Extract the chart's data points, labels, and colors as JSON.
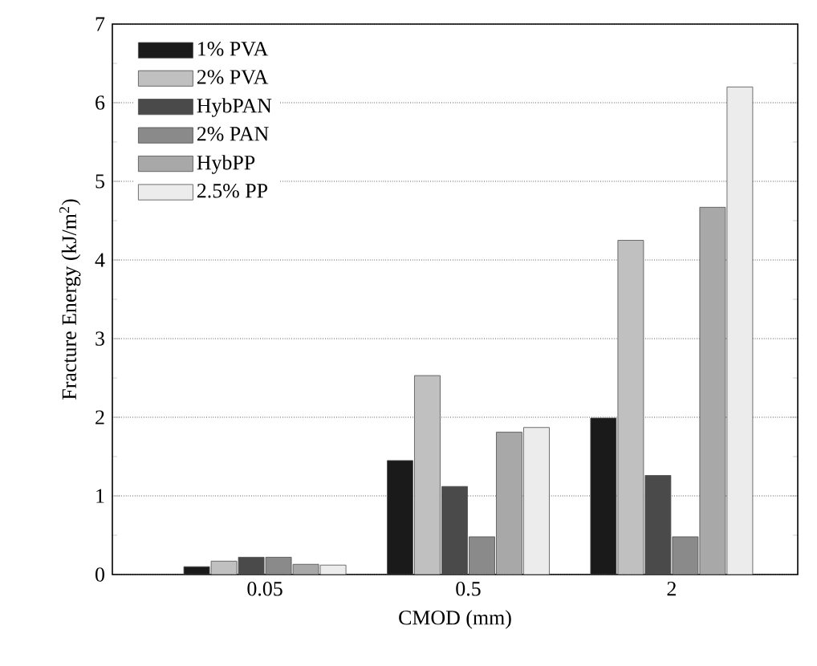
{
  "chart_data": {
    "type": "bar",
    "xlabel": "CMOD (mm)",
    "ylabel": "Fracture Energy (kJ/m$^{2}$)",
    "categories": [
      "0.05",
      "0.5",
      "2"
    ],
    "series": [
      {
        "name": "1% PVA",
        "color": "#1a1a1a",
        "values": [
          0.1,
          1.45,
          1.99
        ]
      },
      {
        "name": "2% PVA",
        "color": "#c0c0c0",
        "values": [
          0.17,
          2.53,
          4.25
        ]
      },
      {
        "name": "HybPAN",
        "color": "#4a4a4a",
        "values": [
          0.22,
          1.12,
          1.26
        ]
      },
      {
        "name": "2% PAN",
        "color": "#8a8a8a",
        "values": [
          0.22,
          0.48,
          0.48
        ]
      },
      {
        "name": "HybPP",
        "color": "#a8a8a8",
        "values": [
          0.13,
          1.81,
          4.67
        ]
      },
      {
        "name": "2.5% PP",
        "color": "#ececec",
        "values": [
          0.12,
          1.87,
          6.2
        ]
      }
    ],
    "ylim": [
      0,
      7
    ],
    "yticks": [
      0,
      1,
      2,
      3,
      4,
      5,
      6,
      7
    ],
    "grid": "y",
    "legend": "top left"
  }
}
